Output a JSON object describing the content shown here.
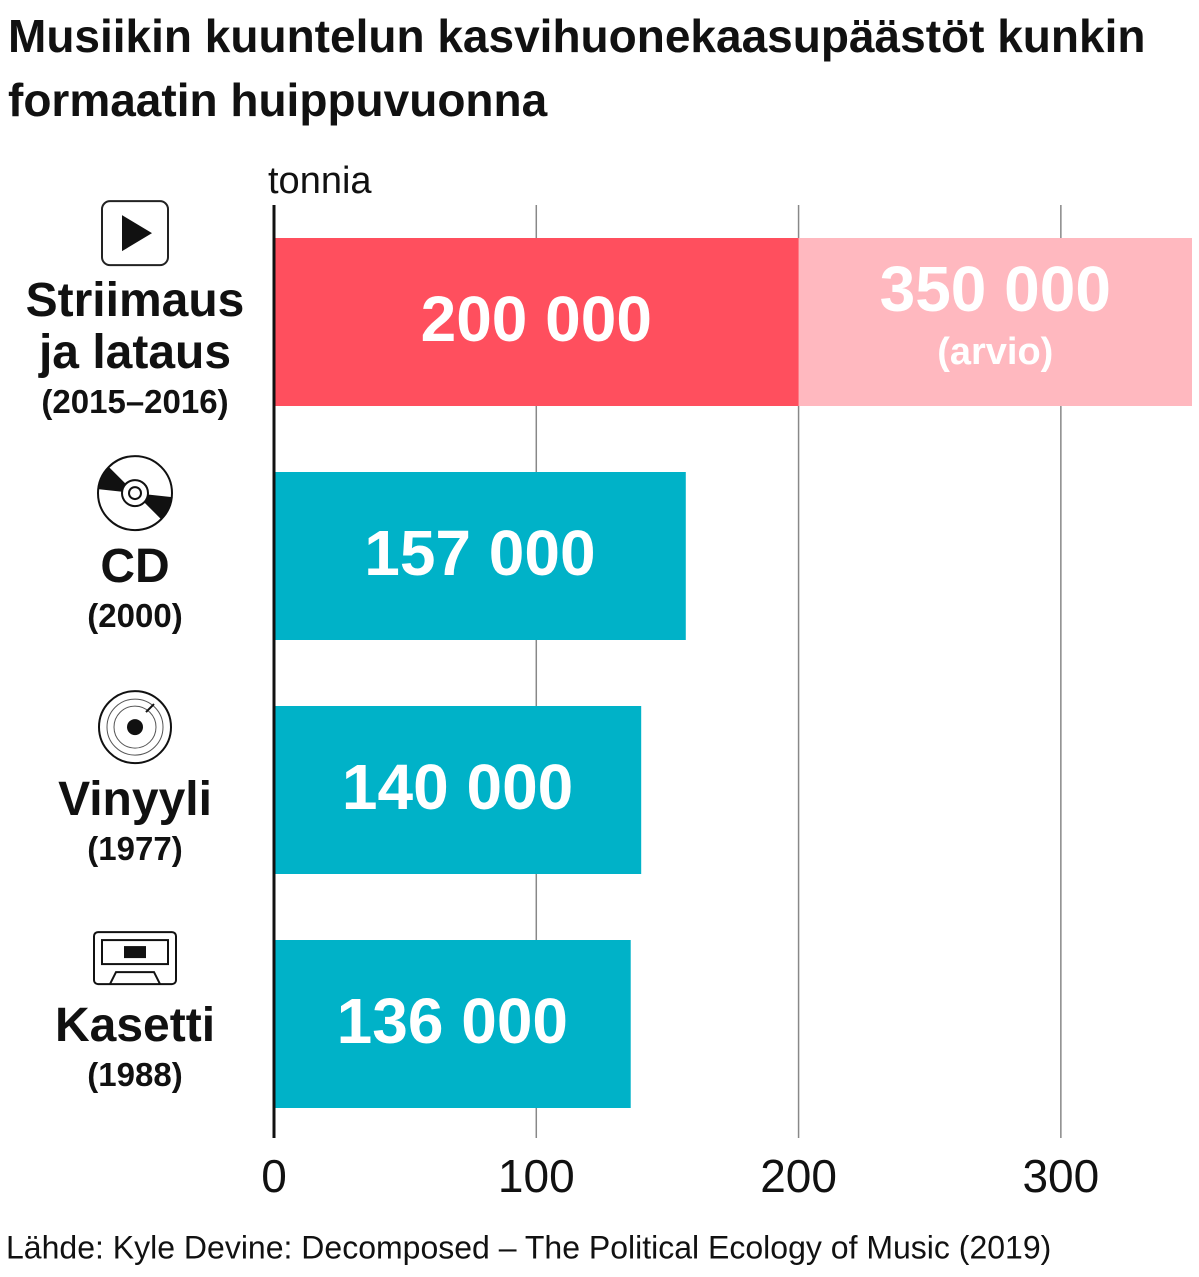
{
  "chart_data": {
    "type": "hbar",
    "title": "Musiikin kuuntelun kasvihuonekaasupäästöt kunkin formaatin huippuvuonna",
    "x_label": "tonnia",
    "source": "Lähde: Kyle Devine: Decomposed – The Political Ecology of Music (2019)",
    "categories": [
      "Striimaus ja lataus",
      "CD",
      "Vinyyli",
      "Kasetti"
    ],
    "periods": [
      "(2015–2016)",
      "(2000)",
      "(1977)",
      "(1988)"
    ],
    "series": [
      {
        "colors": [
          "#ff4f5e",
          "#00b2c8",
          "#00b2c8",
          "#00b2c8"
        ],
        "values": [
          200,
          157,
          140,
          136
        ],
        "value_labels": [
          "200 000",
          "157 000",
          "140 000",
          "136 000"
        ]
      },
      {
        "color": "#ffb8bf",
        "values": [
          350,
          null,
          null,
          null
        ],
        "value_labels": [
          "350 000",
          null,
          null,
          null
        ],
        "note": "(arvio)"
      }
    ],
    "xlim": [
      0,
      350
    ],
    "xticks": [
      0,
      100,
      200,
      300
    ],
    "grid": true
  }
}
